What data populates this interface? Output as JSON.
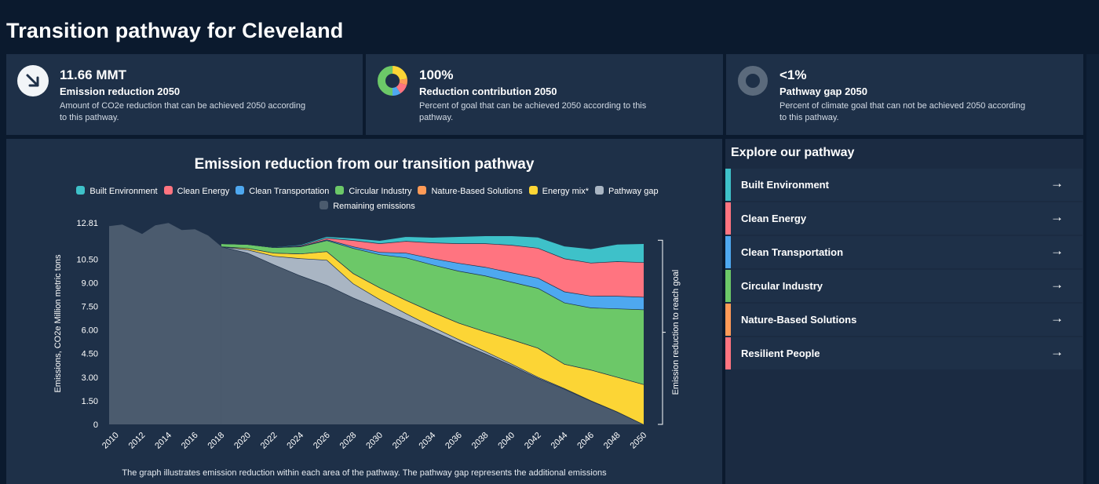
{
  "page": {
    "title": "Transition pathway for Cleveland"
  },
  "kpis": [
    {
      "value": "11.66 MMT",
      "label": "Emission reduction 2050",
      "desc": "Amount of CO2e reduction that can be achieved 2050 according to this pathway.",
      "icon": "arrow-down-right-icon"
    },
    {
      "value": "100%",
      "label": "Reduction contribution 2050",
      "desc": "Percent of goal that can be achieved 2050 according to this pathway.",
      "icon": "donut-chart-icon"
    },
    {
      "value": "<1%",
      "label": "Pathway gap 2050",
      "desc": "Percent of climate goal that can not be achieved 2050 according to this pathway.",
      "icon": "ring-icon"
    }
  ],
  "explore": {
    "title": "Explore our pathway",
    "items": [
      {
        "label": "Built Environment",
        "color": "#3ec1c9"
      },
      {
        "label": "Clean Energy",
        "color": "#ff7480"
      },
      {
        "label": "Clean Transportation",
        "color": "#4ea8f0"
      },
      {
        "label": "Circular Industry",
        "color": "#6cc868"
      },
      {
        "label": "Nature-Based Solutions",
        "color": "#ff9a57"
      },
      {
        "label": "Resilient People",
        "color": "#ff7480"
      }
    ],
    "arrow": "→"
  },
  "chart_data": {
    "type": "area",
    "title": "Emission reduction from our transition pathway",
    "ylabel": "Emissions, CO2e Million metric tons",
    "right_label": "Emission reduction to reach goal",
    "caption": "The graph illustrates emission reduction within each area of the pathway. The pathway gap represents the additional emissions",
    "yticks": [
      "0",
      "1.50",
      "3.00",
      "4.50",
      "6.00",
      "7.50",
      "9.00",
      "10.50",
      "12.81"
    ],
    "ylim": [
      0,
      12.81
    ],
    "xlim": [
      2009.5,
      2050
    ],
    "xticks": [
      "2010",
      "2012",
      "2014",
      "2016",
      "2018",
      "2020",
      "2022",
      "2024",
      "2026",
      "2028",
      "2030",
      "2032",
      "2034",
      "2036",
      "2038",
      "2040",
      "2042",
      "2044",
      "2046",
      "2048",
      "2050"
    ],
    "legend": [
      {
        "name": "Built Environment",
        "color": "#3ec1c9"
      },
      {
        "name": "Clean Energy",
        "color": "#ff7480"
      },
      {
        "name": "Clean Transportation",
        "color": "#4ea8f0"
      },
      {
        "name": "Circular Industry",
        "color": "#6cc868"
      },
      {
        "name": "Nature-Based Solutions",
        "color": "#ff9a57"
      },
      {
        "name": "Energy mix*",
        "color": "#fcd535"
      },
      {
        "name": "Pathway gap",
        "color": "#a9b5c3"
      },
      {
        "name": "Remaining emissions",
        "color": "#4b5b6e"
      }
    ],
    "historical": {
      "x": [
        2009.5,
        2010.5,
        2012,
        2013,
        2014,
        2015,
        2016,
        2017,
        2018
      ],
      "values": [
        12.6,
        12.7,
        12.1,
        12.65,
        12.8,
        12.35,
        12.4,
        12.0,
        11.3
      ]
    },
    "projection": {
      "x": [
        2018,
        2020,
        2022,
        2024,
        2026,
        2028,
        2030,
        2032,
        2034,
        2036,
        2038,
        2040,
        2042,
        2044,
        2046,
        2048,
        2050
      ],
      "series": [
        {
          "name": "Remaining emissions",
          "color": "#4b5b6e",
          "values": [
            11.3,
            10.9,
            10.15,
            9.45,
            8.85,
            8.05,
            7.35,
            6.65,
            5.95,
            5.2,
            4.5,
            3.75,
            2.95,
            2.25,
            1.5,
            0.8,
            0.0
          ]
        },
        {
          "name": "Pathway gap",
          "color": "#a9b5c3",
          "values": [
            0.0,
            0.2,
            0.55,
            1.1,
            1.6,
            0.9,
            0.6,
            0.4,
            0.25,
            0.2,
            0.15,
            0.1,
            0.06,
            0.04,
            0.02,
            0.01,
            0.0
          ]
        },
        {
          "name": "Energy mix*",
          "color": "#fcd535",
          "values": [
            0.0,
            0.1,
            0.2,
            0.3,
            0.55,
            0.65,
            0.75,
            0.85,
            0.95,
            1.05,
            1.25,
            1.55,
            1.85,
            1.55,
            1.95,
            2.2,
            2.55
          ]
        },
        {
          "name": "Nature-Based Solutions",
          "color": "#ff9a57",
          "values": [
            0.0,
            0.0,
            0.0,
            0.0,
            0.0,
            0.0,
            0.0,
            0.0,
            0.0,
            0.0,
            0.0,
            0.0,
            0.0,
            0.0,
            0.0,
            0.0,
            0.0
          ]
        },
        {
          "name": "Circular Industry",
          "color": "#6cc868",
          "values": [
            0.2,
            0.25,
            0.35,
            0.45,
            0.7,
            1.6,
            2.1,
            2.7,
            3.0,
            3.3,
            3.55,
            3.65,
            3.8,
            3.9,
            3.95,
            4.35,
            4.75
          ]
        },
        {
          "name": "Clean Transportation",
          "color": "#4ea8f0",
          "values": [
            0.0,
            0.0,
            0.0,
            0.02,
            0.05,
            0.1,
            0.15,
            0.3,
            0.4,
            0.5,
            0.55,
            0.6,
            0.65,
            0.7,
            0.75,
            0.8,
            0.8
          ]
        },
        {
          "name": "Clean Energy",
          "color": "#ff7480",
          "values": [
            0.0,
            0.0,
            0.0,
            0.05,
            0.1,
            0.4,
            0.55,
            0.75,
            1.0,
            1.25,
            1.5,
            1.75,
            1.9,
            2.1,
            2.1,
            2.2,
            2.2
          ]
        },
        {
          "name": "Built Environment",
          "color": "#3ec1c9",
          "values": [
            0.0,
            0.02,
            0.04,
            0.06,
            0.1,
            0.15,
            0.2,
            0.3,
            0.35,
            0.45,
            0.5,
            0.6,
            0.7,
            0.8,
            0.9,
            1.1,
            1.2
          ]
        }
      ]
    }
  }
}
